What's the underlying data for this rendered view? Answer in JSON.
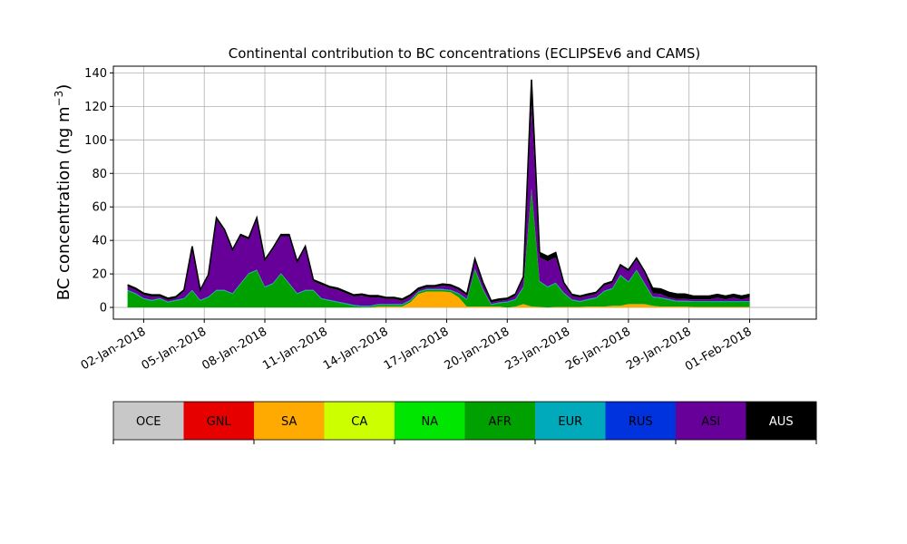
{
  "chart_data": {
    "type": "area",
    "title": "Continental contribution to BC concentrations (ECLIPSEv6 and CAMS)",
    "ylabel_main": "BC concentration (ng m",
    "ylabel_exp": "−3",
    "ylabel_close": ")",
    "xlabel": "",
    "ylim": [
      -7,
      144
    ],
    "y_ticks": [
      0,
      20,
      40,
      60,
      80,
      100,
      120,
      140
    ],
    "xlim_days": [
      0.5,
      35.3
    ],
    "x_ticks": [
      {
        "day": 2,
        "label": "02-Jan-2018"
      },
      {
        "day": 5,
        "label": "05-Jan-2018"
      },
      {
        "day": 8,
        "label": "08-Jan-2018"
      },
      {
        "day": 11,
        "label": "11-Jan-2018"
      },
      {
        "day": 14,
        "label": "14-Jan-2018"
      },
      {
        "day": 17,
        "label": "17-Jan-2018"
      },
      {
        "day": 20,
        "label": "20-Jan-2018"
      },
      {
        "day": 23,
        "label": "23-Jan-2018"
      },
      {
        "day": 26,
        "label": "26-Jan-2018"
      },
      {
        "day": 29,
        "label": "29-Jan-2018"
      },
      {
        "day": 32,
        "label": "01-Feb-2018"
      }
    ],
    "grid": true,
    "legend": {
      "placement": "bottom colorbar",
      "entries": [
        {
          "name": "OCE",
          "color": "#c8c8c8",
          "text_color": "#000000"
        },
        {
          "name": "GNL",
          "color": "#e60000",
          "text_color": "#000000"
        },
        {
          "name": "SA",
          "color": "#ffaa00",
          "text_color": "#000000"
        },
        {
          "name": "CA",
          "color": "#ccff00",
          "text_color": "#000000"
        },
        {
          "name": "NA",
          "color": "#00e600",
          "text_color": "#000000"
        },
        {
          "name": "AFR",
          "color": "#00a000",
          "text_color": "#000000"
        },
        {
          "name": "EUR",
          "color": "#00aabb",
          "text_color": "#000000"
        },
        {
          "name": "RUS",
          "color": "#0033dd",
          "text_color": "#000000"
        },
        {
          "name": "ASI",
          "color": "#660099",
          "text_color": "#000000"
        },
        {
          "name": "AUS",
          "color": "#000000",
          "text_color": "#ffffff"
        }
      ]
    },
    "stack_order": [
      "OCE",
      "GNL",
      "SA",
      "CA",
      "NA",
      "AFR",
      "EUR",
      "RUS",
      "ASI",
      "AUS"
    ],
    "x_days": [
      1.2,
      1.6,
      2.0,
      2.4,
      2.8,
      3.2,
      3.6,
      4.0,
      4.4,
      4.8,
      5.2,
      5.6,
      6.0,
      6.4,
      6.8,
      7.2,
      7.6,
      8.0,
      8.4,
      8.8,
      9.2,
      9.6,
      10.0,
      10.4,
      10.8,
      11.2,
      11.6,
      12.0,
      12.4,
      12.8,
      13.2,
      13.6,
      14.0,
      14.4,
      14.8,
      15.2,
      15.6,
      16.0,
      16.4,
      16.8,
      17.2,
      17.6,
      18.0,
      18.4,
      18.8,
      19.2,
      19.6,
      20.0,
      20.4,
      20.8,
      21.2,
      21.6,
      22.0,
      22.4,
      22.8,
      23.2,
      23.6,
      24.0,
      24.4,
      24.8,
      25.2,
      25.6,
      26.0,
      26.4,
      26.8,
      27.2,
      27.6,
      28.0,
      28.4,
      28.8,
      29.2,
      29.6,
      30.0,
      30.4,
      30.8,
      31.2,
      31.6,
      32.0
    ],
    "series": [
      {
        "name": "SA",
        "values": [
          0,
          0,
          0,
          0,
          0,
          0,
          0,
          0,
          0,
          0,
          0,
          0,
          0,
          0,
          0,
          0,
          0,
          0,
          0,
          0,
          0,
          0,
          0,
          0,
          0,
          0,
          0,
          0,
          0,
          0,
          0,
          0.5,
          0.5,
          0.5,
          0.5,
          3,
          8,
          9.5,
          9.5,
          9.5,
          9,
          6,
          0.5,
          0.5,
          0.5,
          0.5,
          0.5,
          0,
          0.5,
          2,
          0.5,
          0.3,
          0,
          0.3,
          0.3,
          0.3,
          0.3,
          0.5,
          0.5,
          0.5,
          1,
          1,
          2,
          2,
          2,
          1,
          0.5,
          0.5,
          0.5,
          0.5,
          0.3,
          0.3,
          0.3,
          0.3,
          0.3,
          0.3,
          0.3,
          0.3
        ]
      },
      {
        "name": "AFR",
        "values": [
          10,
          8,
          5,
          4,
          5,
          3,
          4,
          5,
          10,
          4,
          6,
          10,
          10,
          8,
          14,
          20,
          22,
          12,
          14,
          20,
          14,
          8,
          10,
          10,
          5,
          4,
          3,
          2,
          1,
          0.5,
          0.5,
          1,
          1,
          1,
          1,
          1,
          1,
          1,
          1,
          1,
          1,
          2,
          4,
          22,
          10,
          1,
          2,
          3,
          4,
          10,
          70,
          15,
          12,
          14,
          8,
          4,
          3,
          4,
          5,
          9,
          10,
          18,
          13,
          20,
          12,
          5,
          5,
          4,
          3,
          3,
          3,
          3,
          3,
          3,
          3,
          3,
          3,
          3
        ]
      },
      {
        "name": "EUR",
        "values": [
          0.5,
          0.5,
          0.5,
          0.5,
          0.5,
          0.5,
          0.5,
          0.5,
          0.5,
          0.5,
          0.5,
          0.5,
          0.5,
          0.5,
          0.5,
          0.5,
          0.5,
          0.5,
          0.5,
          0.5,
          0.5,
          0.5,
          0.5,
          0.5,
          0.5,
          0.5,
          0.5,
          0.5,
          0.5,
          0.5,
          0.5,
          0.5,
          0.5,
          0.5,
          0.5,
          0.5,
          0.5,
          0.5,
          0.5,
          0.5,
          0.5,
          0.5,
          0.5,
          0.5,
          0.5,
          0.5,
          0.5,
          0.5,
          0.5,
          0.5,
          0.5,
          0.5,
          0.5,
          0.5,
          0.5,
          0.5,
          0.5,
          0.5,
          0.5,
          0.5,
          0.5,
          0.5,
          0.5,
          0.5,
          0.5,
          0.5,
          0.5,
          0.5,
          0.5,
          0.5,
          0.5,
          0.5,
          0.5,
          0.5,
          0.5,
          0.5,
          0.5,
          0.5
        ]
      },
      {
        "name": "ASI",
        "values": [
          2,
          2,
          2,
          2,
          1,
          1,
          1,
          4,
          25,
          5,
          12,
          42,
          35,
          25,
          28,
          20,
          30,
          15,
          20,
          22,
          28,
          18,
          25,
          5,
          8,
          7,
          7,
          6,
          5,
          6,
          5,
          4,
          3,
          3,
          2,
          2,
          1,
          1,
          1,
          2,
          2,
          2,
          2,
          5,
          3,
          1,
          1,
          1,
          2,
          5,
          50,
          14,
          15,
          15,
          5,
          2,
          2,
          2,
          2,
          3,
          3,
          5,
          6,
          6,
          6,
          2,
          2,
          1,
          1,
          1,
          1,
          1,
          1,
          2,
          1,
          2,
          1,
          2
        ]
      },
      {
        "name": "AUS",
        "values": [
          1,
          1,
          1,
          1,
          1,
          1,
          1,
          1,
          1,
          1,
          1,
          1,
          1,
          1,
          1,
          1,
          1,
          1,
          1,
          1,
          1,
          1,
          1,
          1,
          1,
          1,
          1,
          1,
          1,
          1,
          1,
          1,
          1,
          1,
          1,
          1,
          1,
          1,
          1,
          1,
          1,
          1,
          1,
          1,
          1,
          1,
          1,
          1,
          1,
          1,
          15,
          3,
          3,
          3,
          1,
          1,
          1,
          1,
          1,
          1,
          1,
          1,
          1,
          1,
          1,
          3,
          3,
          3,
          3,
          3,
          2,
          2,
          2,
          2,
          2,
          2,
          2,
          2
        ]
      }
    ]
  }
}
